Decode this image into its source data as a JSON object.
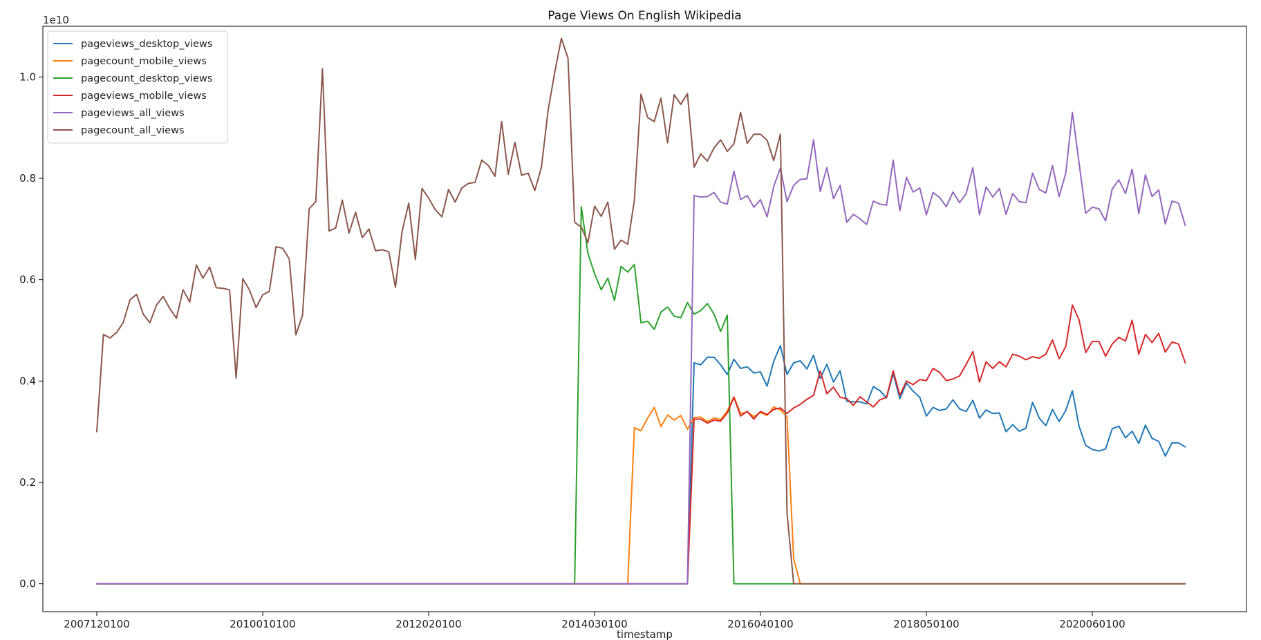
{
  "chart_data": {
    "type": "line",
    "title": "Page Views On English Wikipedia",
    "xlabel": "timestamp",
    "ylabel": "",
    "y_scale_note": "1e10",
    "y_multiplier": 10000000000,
    "ylim": [
      -0.055,
      1.1
    ],
    "y_ticks": [
      0.0,
      0.2,
      0.4,
      0.6,
      0.8,
      1.0
    ],
    "y_tick_labels": [
      "0.0",
      "0.2",
      "0.4",
      "0.6",
      "0.8",
      "1.0"
    ],
    "x_ticks": [
      "2007120100",
      "2010010100",
      "2012020100",
      "2014030100",
      "2016040100",
      "2018050100",
      "2020060100"
    ],
    "x_start": "2007-12",
    "x_end": "2021-09",
    "legend_position": "top-left",
    "grid": false,
    "series": [
      {
        "name": "pageviews_desktop_views",
        "color": "#1f77b4",
        "segments": [
          {
            "start": "2015-06",
            "values": [
              0.436,
              0.432,
              0.447,
              0.447,
              0.432,
              0.413,
              0.443,
              0.425,
              0.428,
              0.416,
              0.418,
              0.39,
              0.439,
              0.47,
              0.413,
              0.436,
              0.44,
              0.424,
              0.451,
              0.405,
              0.433,
              0.398,
              0.42,
              0.36,
              0.359,
              0.359,
              0.355,
              0.389,
              0.381,
              0.367,
              0.415,
              0.365,
              0.396,
              0.38,
              0.368,
              0.331,
              0.348,
              0.342,
              0.345,
              0.363,
              0.345,
              0.34,
              0.362,
              0.327,
              0.343,
              0.336,
              0.337,
              0.3,
              0.314,
              0.301,
              0.307,
              0.358,
              0.327,
              0.312,
              0.344,
              0.32,
              0.342,
              0.381,
              0.311,
              0.273,
              0.265,
              0.262,
              0.266,
              0.306,
              0.311,
              0.288,
              0.301,
              0.277,
              0.313,
              0.287,
              0.281,
              0.252,
              0.278,
              0.278,
              0.27
            ]
          }
        ]
      },
      {
        "name": "pagecount_mobile_views",
        "color": "#ff7f0e",
        "segments": [
          {
            "start": "2014-09",
            "values": [
              0.308,
              0.302,
              0.327,
              0.348,
              0.31,
              0.333,
              0.323,
              0.332,
              0.305,
              0.328,
              0.329,
              0.32,
              0.327,
              0.324,
              0.341,
              0.369,
              0.336,
              0.339,
              0.33,
              0.338,
              0.332,
              0.349,
              0.343,
              0.33,
              0.05
            ]
          }
        ]
      },
      {
        "name": "pagecount_desktop_views",
        "color": "#2ca02c",
        "segments": [
          {
            "start": "2014-01",
            "values": [
              0.744,
              0.652,
              0.612,
              0.58,
              0.603,
              0.559,
              0.626,
              0.615,
              0.63,
              0.515,
              0.518,
              0.502,
              0.536,
              0.546,
              0.528,
              0.525,
              0.555,
              0.532,
              0.539,
              0.553,
              0.532,
              0.498,
              0.53
            ]
          }
        ]
      },
      {
        "name": "pageviews_mobile_views",
        "color": "#d62728",
        "segments": [
          {
            "start": "2015-06",
            "values": [
              0.325,
              0.325,
              0.317,
              0.323,
              0.321,
              0.337,
              0.368,
              0.331,
              0.34,
              0.325,
              0.34,
              0.334,
              0.344,
              0.347,
              0.336,
              0.347,
              0.354,
              0.364,
              0.372,
              0.42,
              0.375,
              0.388,
              0.368,
              0.365,
              0.352,
              0.369,
              0.359,
              0.349,
              0.363,
              0.368,
              0.42,
              0.372,
              0.4,
              0.393,
              0.403,
              0.401,
              0.425,
              0.417,
              0.401,
              0.404,
              0.41,
              0.433,
              0.458,
              0.398,
              0.438,
              0.425,
              0.438,
              0.428,
              0.453,
              0.449,
              0.442,
              0.448,
              0.445,
              0.453,
              0.481,
              0.444,
              0.468,
              0.55,
              0.521,
              0.456,
              0.478,
              0.478,
              0.449,
              0.473,
              0.486,
              0.479,
              0.52,
              0.453,
              0.492,
              0.476,
              0.494,
              0.457,
              0.477,
              0.473,
              0.436
            ]
          }
        ]
      },
      {
        "name": "pageviews_all_views",
        "color": "#9467bd",
        "segments": [
          {
            "start": "2015-06",
            "values": [
              0.766,
              0.763,
              0.764,
              0.772,
              0.753,
              0.749,
              0.814,
              0.758,
              0.766,
              0.743,
              0.758,
              0.724,
              0.784,
              0.82,
              0.754,
              0.786,
              0.798,
              0.799,
              0.876,
              0.774,
              0.821,
              0.76,
              0.786,
              0.713,
              0.729,
              0.72,
              0.709,
              0.755,
              0.749,
              0.747,
              0.836,
              0.736,
              0.802,
              0.773,
              0.781,
              0.728,
              0.772,
              0.762,
              0.744,
              0.773,
              0.752,
              0.77,
              0.821,
              0.728,
              0.783,
              0.763,
              0.78,
              0.729,
              0.77,
              0.754,
              0.752,
              0.81,
              0.778,
              0.771,
              0.825,
              0.764,
              0.81,
              0.93,
              0.831,
              0.731,
              0.743,
              0.74,
              0.716,
              0.779,
              0.797,
              0.77,
              0.818,
              0.73,
              0.807,
              0.764,
              0.777,
              0.71,
              0.755,
              0.751,
              0.707
            ]
          }
        ]
      },
      {
        "name": "pagecount_all_views",
        "color": "#8c564b",
        "segments": [
          {
            "start": "2007-12",
            "values": [
              0.3,
              0.492,
              0.485,
              0.496,
              0.516,
              0.56,
              0.571,
              0.532,
              0.515,
              0.55,
              0.567,
              0.543,
              0.524,
              0.58,
              0.556,
              0.629,
              0.603,
              0.625,
              0.584,
              0.583,
              0.58,
              0.406,
              0.602,
              0.58,
              0.545,
              0.57,
              0.577,
              0.665,
              0.662,
              0.641,
              0.491,
              0.53,
              0.74,
              0.754,
              1.016,
              0.696,
              0.702,
              0.757,
              0.692,
              0.733,
              0.683,
              0.7,
              0.657,
              0.659,
              0.655,
              0.585,
              0.695,
              0.751,
              0.64,
              0.78,
              0.761,
              0.738,
              0.724,
              0.778,
              0.753,
              0.781,
              0.79,
              0.792,
              0.836,
              0.825,
              0.804,
              0.912,
              0.808,
              0.871,
              0.806,
              0.81,
              0.776,
              0.822,
              0.934,
              1.009,
              1.076,
              1.037,
              0.713,
              0.704,
              0.673,
              0.745,
              0.725,
              0.753,
              0.66,
              0.678,
              0.67,
              0.757,
              0.966,
              0.92,
              0.912,
              0.958,
              0.87,
              0.965,
              0.946,
              0.967,
              0.822,
              0.848,
              0.834,
              0.86,
              0.876,
              0.853,
              0.868,
              0.93,
              0.869,
              0.887,
              0.887,
              0.875,
              0.835,
              0.887,
              0.14,
              0.0
            ]
          }
        ]
      }
    ],
    "zero_baseline": {
      "from": "2007-12",
      "to": "2021-08"
    }
  }
}
